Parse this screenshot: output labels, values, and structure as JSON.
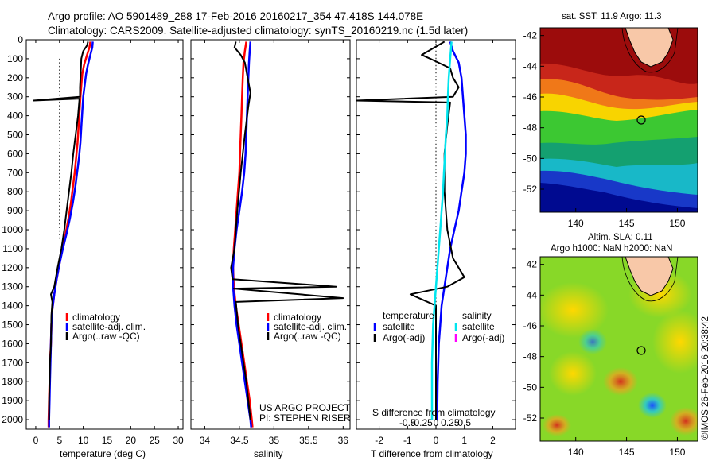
{
  "header": {
    "line1": "Argo profile: AO 5901489_288 17-Feb-2016 20160217_354 47.418S 144.078E",
    "line2": "Climatology: CARS2009. Satellite-adjusted climatology: synTS_20160219.nc (1.5d later)"
  },
  "colors": {
    "climatology": "#ff0000",
    "satellite": "#0000ff",
    "argo": "#000000",
    "satellite_salinity": "#00e5ee",
    "argo_salinity": "#ff00ff"
  },
  "panel1": {
    "xlabel": "temperature (deg C)",
    "xticks": [
      "0",
      "5",
      "10",
      "15",
      "20",
      "25",
      "30"
    ],
    "xvals": [
      0,
      5,
      10,
      15,
      20,
      25,
      30
    ],
    "xlim": [
      -2,
      31
    ],
    "yticks": [
      "0",
      "100",
      "200",
      "300",
      "400",
      "500",
      "600",
      "700",
      "800",
      "900",
      "1000",
      "1100",
      "1200",
      "1300",
      "1400",
      "1500",
      "1600",
      "1700",
      "1800",
      "1900",
      "2000"
    ],
    "legend": [
      "climatology",
      "satellite-adj. clim.",
      "Argo(..raw -QC)"
    ]
  },
  "panel2": {
    "xlabel": "salinity",
    "xticks": [
      "34",
      "34.5",
      "35",
      "35.5",
      "36"
    ],
    "xvals": [
      34,
      34.5,
      35,
      35.5,
      36
    ],
    "xlim": [
      33.8,
      36.1
    ],
    "legend": [
      "climatology",
      "satellite-adj. clim.",
      "Argo(..raw -QC)"
    ],
    "credit1": "US ARGO PROJECT",
    "credit2": "PI: STEPHEN RISER"
  },
  "panel3": {
    "xlabel": "T difference from climatology",
    "xticks": [
      "-2",
      "-1",
      "0",
      "1",
      "2"
    ],
    "xvals": [
      -2,
      -1,
      0,
      1,
      2
    ],
    "xlim": [
      -2.8,
      2.8
    ],
    "s_xlabel": "S difference from climatology",
    "s_xticks": [
      "-0.5",
      "-0.25",
      "0",
      "0.25",
      "0.5"
    ],
    "s_xvals": [
      -0.5,
      -0.25,
      0,
      0.25,
      0.5
    ],
    "legend_temp_title": "temperature",
    "legend_sal_title": "salinity",
    "legend_temp": [
      "satellite",
      "Argo(-adj)"
    ],
    "legend_sal": [
      "satellite",
      "Argo(-adj)"
    ]
  },
  "map_top": {
    "title": "sat. SST: 11.9 Argo: 11.3",
    "yticks": [
      "-42",
      "-44",
      "-46",
      "-48",
      "-50",
      "-52"
    ],
    "xticks": [
      "140",
      "145",
      "150"
    ]
  },
  "map_bottom": {
    "title1": "Altim. SLA: 0.11",
    "title2": "Argo h1000: NaN h2000: NaN",
    "yticks": [
      "-42",
      "-44",
      "-46",
      "-48",
      "-50",
      "-52"
    ],
    "xticks": [
      "140",
      "145",
      "150"
    ]
  },
  "credit_vertical": "©IMOS 26-Feb-2016 20:38:42",
  "chart_data": [
    {
      "type": "line",
      "xlabel": "temperature (deg C)",
      "ylabel": "",
      "xlim": [
        -2,
        31
      ],
      "ylim": [
        2050,
        0
      ],
      "series": [
        {
          "name": "climatology",
          "points": [
            [
              11.5,
              10
            ],
            [
              11.3,
              40
            ],
            [
              10.8,
              80
            ],
            [
              10.2,
              130
            ],
            [
              9.8,
              180
            ],
            [
              9.6,
              240
            ],
            [
              9.4,
              300
            ],
            [
              9.2,
              380
            ],
            [
              9.0,
              460
            ],
            [
              8.8,
              540
            ],
            [
              8.5,
              620
            ],
            [
              8.2,
              700
            ],
            [
              7.8,
              780
            ],
            [
              7.4,
              860
            ],
            [
              6.9,
              940
            ],
            [
              6.3,
              1020
            ],
            [
              5.6,
              1100
            ],
            [
              5.0,
              1180
            ],
            [
              4.4,
              1260
            ],
            [
              3.9,
              1340
            ],
            [
              3.5,
              1420
            ],
            [
              3.3,
              1500
            ],
            [
              3.2,
              1600
            ],
            [
              3.0,
              1700
            ],
            [
              2.9,
              1800
            ],
            [
              2.8,
              1900
            ],
            [
              2.7,
              2000
            ],
            [
              2.7,
              2040
            ]
          ]
        },
        {
          "name": "satellite-adj. clim.",
          "points": [
            [
              12.0,
              10
            ],
            [
              11.9,
              40
            ],
            [
              11.5,
              80
            ],
            [
              11.0,
              130
            ],
            [
              10.6,
              180
            ],
            [
              10.3,
              240
            ],
            [
              10.0,
              300
            ],
            [
              9.8,
              380
            ],
            [
              9.6,
              460
            ],
            [
              9.4,
              540
            ],
            [
              9.1,
              620
            ],
            [
              8.7,
              700
            ],
            [
              8.3,
              780
            ],
            [
              7.8,
              860
            ],
            [
              7.2,
              940
            ],
            [
              6.5,
              1020
            ],
            [
              5.7,
              1100
            ],
            [
              5.0,
              1180
            ],
            [
              4.4,
              1260
            ],
            [
              3.9,
              1340
            ],
            [
              3.5,
              1420
            ],
            [
              3.3,
              1500
            ],
            [
              3.2,
              1600
            ],
            [
              3.1,
              1700
            ],
            [
              3.0,
              1800
            ],
            [
              2.9,
              1900
            ],
            [
              2.8,
              2000
            ],
            [
              2.8,
              2040
            ]
          ]
        },
        {
          "name": "Argo(..raw -QC)",
          "points": [
            [
              11.0,
              10
            ],
            [
              10.8,
              30
            ],
            [
              10.0,
              60
            ],
            [
              9.6,
              100
            ],
            [
              9.5,
              150
            ],
            [
              9.4,
              200
            ],
            [
              9.3,
              250
            ],
            [
              9.3,
              300
            ],
            [
              -0.5,
              320
            ],
            [
              9.2,
              310
            ],
            [
              8.9,
              400
            ],
            [
              8.4,
              500
            ],
            [
              7.9,
              600
            ],
            [
              7.5,
              700
            ],
            [
              7.0,
              800
            ],
            [
              6.5,
              900
            ],
            [
              6.0,
              1000
            ],
            [
              5.4,
              1100
            ],
            [
              4.6,
              1200
            ],
            [
              3.9,
              1300
            ],
            [
              3.2,
              1340
            ],
            [
              3.5,
              1380
            ],
            [
              3.3,
              1450
            ],
            [
              3.2,
              1600
            ],
            [
              3.0,
              1700
            ],
            [
              2.9,
              1800
            ],
            [
              2.8,
              1900
            ],
            [
              2.8,
              2000
            ]
          ]
        }
      ]
    },
    {
      "type": "line",
      "xlabel": "salinity",
      "ylabel": "",
      "xlim": [
        33.8,
        36.1
      ],
      "ylim": [
        2050,
        0
      ],
      "series": [
        {
          "name": "climatology",
          "points": [
            [
              34.6,
              10
            ],
            [
              34.58,
              60
            ],
            [
              34.56,
              120
            ],
            [
              34.55,
              200
            ],
            [
              34.54,
              300
            ],
            [
              34.53,
              400
            ],
            [
              34.52,
              500
            ],
            [
              34.51,
              600
            ],
            [
              34.5,
              700
            ],
            [
              34.48,
              800
            ],
            [
              34.46,
              900
            ],
            [
              34.44,
              1000
            ],
            [
              34.42,
              1100
            ],
            [
              34.41,
              1200
            ],
            [
              34.42,
              1300
            ],
            [
              34.45,
              1400
            ],
            [
              34.49,
              1500
            ],
            [
              34.53,
              1600
            ],
            [
              34.57,
              1700
            ],
            [
              34.61,
              1800
            ],
            [
              34.65,
              1900
            ],
            [
              34.68,
              2000
            ],
            [
              34.69,
              2040
            ]
          ]
        },
        {
          "name": "satellite-adj. clim.",
          "points": [
            [
              34.66,
              10
            ],
            [
              34.65,
              60
            ],
            [
              34.64,
              120
            ],
            [
              34.63,
              200
            ],
            [
              34.62,
              300
            ],
            [
              34.61,
              400
            ],
            [
              34.6,
              500
            ],
            [
              34.59,
              600
            ],
            [
              34.57,
              700
            ],
            [
              34.54,
              800
            ],
            [
              34.5,
              900
            ],
            [
              34.46,
              1000
            ],
            [
              34.43,
              1100
            ],
            [
              34.41,
              1200
            ],
            [
              34.41,
              1300
            ],
            [
              34.43,
              1400
            ],
            [
              34.46,
              1500
            ],
            [
              34.5,
              1600
            ],
            [
              34.54,
              1700
            ],
            [
              34.58,
              1800
            ],
            [
              34.62,
              1900
            ],
            [
              34.66,
              2000
            ],
            [
              34.67,
              2040
            ]
          ]
        },
        {
          "name": "Argo(..raw -QC)",
          "points": [
            [
              34.45,
              10
            ],
            [
              34.43,
              40
            ],
            [
              34.52,
              80
            ],
            [
              34.58,
              120
            ],
            [
              34.62,
              200
            ],
            [
              34.66,
              280
            ],
            [
              34.63,
              350
            ],
            [
              34.58,
              500
            ],
            [
              34.52,
              700
            ],
            [
              34.47,
              900
            ],
            [
              34.43,
              1100
            ],
            [
              34.38,
              1200
            ],
            [
              34.4,
              1260
            ],
            [
              35.9,
              1300
            ],
            [
              34.42,
              1310
            ],
            [
              36.0,
              1360
            ],
            [
              34.45,
              1380
            ],
            [
              34.48,
              1500
            ],
            [
              34.52,
              1600
            ],
            [
              34.56,
              1700
            ],
            [
              34.6,
              1800
            ],
            [
              34.63,
              1900
            ],
            [
              34.66,
              2000
            ]
          ]
        }
      ]
    },
    {
      "type": "line",
      "xlabel": "T difference from climatology",
      "x2label": "S difference from climatology",
      "ylabel": "",
      "xlim": [
        -2.8,
        2.8
      ],
      "ylim": [
        2050,
        0
      ],
      "series": [
        {
          "name": "temperature satellite",
          "points": [
            [
              0.5,
              10
            ],
            [
              0.6,
              60
            ],
            [
              0.8,
              120
            ],
            [
              0.9,
              200
            ],
            [
              0.95,
              300
            ],
            [
              1.0,
              400
            ],
            [
              1.05,
              500
            ],
            [
              1.05,
              600
            ],
            [
              1.0,
              700
            ],
            [
              0.9,
              800
            ],
            [
              0.8,
              900
            ],
            [
              0.65,
              1000
            ],
            [
              0.5,
              1100
            ],
            [
              0.4,
              1200
            ],
            [
              0.3,
              1300
            ],
            [
              0.2,
              1400
            ],
            [
              0.15,
              1500
            ],
            [
              0.1,
              1600
            ],
            [
              0.08,
              1700
            ],
            [
              0.06,
              1800
            ],
            [
              0.05,
              1900
            ],
            [
              0.04,
              2000
            ]
          ]
        },
        {
          "name": "temperature Argo(-adj)",
          "points": [
            [
              0.3,
              10
            ],
            [
              -0.5,
              80
            ],
            [
              -0.2,
              100
            ],
            [
              0.5,
              150
            ],
            [
              0.6,
              200
            ],
            [
              0.8,
              250
            ],
            [
              0.6,
              300
            ],
            [
              -2.8,
              320
            ],
            [
              0.5,
              330
            ],
            [
              0.4,
              450
            ],
            [
              0.3,
              600
            ],
            [
              0.3,
              800
            ],
            [
              0.4,
              1000
            ],
            [
              0.6,
              1150
            ],
            [
              1.0,
              1250
            ],
            [
              0.4,
              1300
            ],
            [
              -0.9,
              1340
            ],
            [
              0.0,
              1400
            ],
            [
              0.0,
              1500
            ],
            [
              0.0,
              1700
            ],
            [
              0.0,
              2000
            ]
          ]
        },
        {
          "name": "salinity satellite",
          "points": [
            [
              0.55,
              10
            ],
            [
              0.5,
              100
            ],
            [
              0.45,
              200
            ],
            [
              0.42,
              300
            ],
            [
              0.4,
              400
            ],
            [
              0.35,
              500
            ],
            [
              0.32,
              600
            ],
            [
              0.28,
              700
            ],
            [
              0.25,
              800
            ],
            [
              0.2,
              900
            ],
            [
              0.15,
              1000
            ],
            [
              0.1,
              1100
            ],
            [
              0.05,
              1200
            ],
            [
              0.0,
              1300
            ],
            [
              -0.05,
              1400
            ],
            [
              -0.1,
              1500
            ],
            [
              -0.12,
              1600
            ],
            [
              -0.14,
              1700
            ],
            [
              -0.14,
              1800
            ],
            [
              -0.14,
              1900
            ],
            [
              -0.14,
              2000
            ]
          ]
        }
      ]
    }
  ]
}
